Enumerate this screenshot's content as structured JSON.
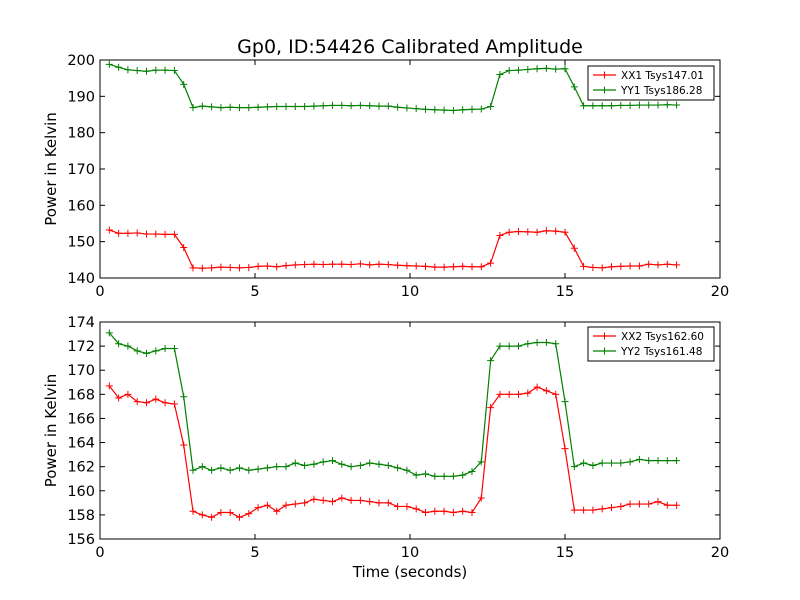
{
  "figure": {
    "title": "Gp0, ID:54426 Calibrated Amplitude"
  },
  "chart_data": [
    {
      "type": "line",
      "title": "Gp0, ID:54426 Calibrated Amplitude",
      "xlabel": "",
      "ylabel": "Power in Kelvin",
      "xlim": [
        0,
        20
      ],
      "ylim": [
        140,
        200
      ],
      "xticks": [
        0,
        5,
        10,
        15,
        20
      ],
      "yticks": [
        140,
        150,
        160,
        170,
        180,
        190,
        200
      ],
      "grid": false,
      "legend_position": "top-right",
      "x": [
        0.3,
        0.6,
        0.9,
        1.2,
        1.5,
        1.8,
        2.1,
        2.4,
        2.7,
        3.0,
        3.3,
        3.6,
        3.9,
        4.2,
        4.5,
        4.8,
        5.1,
        5.4,
        5.7,
        6.0,
        6.3,
        6.6,
        6.9,
        7.2,
        7.5,
        7.8,
        8.1,
        8.4,
        8.7,
        9.0,
        9.3,
        9.6,
        9.9,
        10.2,
        10.5,
        10.8,
        11.1,
        11.4,
        11.7,
        12.0,
        12.3,
        12.6,
        12.9,
        13.2,
        13.5,
        13.8,
        14.1,
        14.4,
        14.7,
        15.0,
        15.3,
        15.6,
        15.9,
        16.2,
        16.5,
        16.8,
        17.1,
        17.4,
        17.7,
        18.0,
        18.3,
        18.6
      ],
      "series": [
        {
          "name": "XX1 Tsys147.01",
          "color": "#ff0000",
          "values": [
            153.2,
            152.3,
            152.3,
            152.4,
            152.1,
            152.1,
            152.0,
            152.0,
            148.4,
            142.8,
            142.7,
            142.8,
            143.0,
            142.9,
            142.8,
            142.9,
            143.2,
            143.3,
            143.1,
            143.4,
            143.6,
            143.7,
            143.8,
            143.7,
            143.8,
            143.8,
            143.7,
            143.9,
            143.6,
            143.8,
            143.7,
            143.5,
            143.4,
            143.3,
            143.2,
            143.0,
            143.0,
            143.1,
            143.2,
            143.1,
            143.1,
            144.1,
            151.7,
            152.6,
            152.8,
            152.7,
            152.6,
            153.0,
            152.9,
            152.6,
            148.2,
            143.2,
            142.9,
            142.8,
            143.1,
            143.2,
            143.3,
            143.3,
            143.8,
            143.6,
            143.8,
            143.6
          ]
        },
        {
          "name": "YY1 Tsys186.28",
          "color": "#008000",
          "values": [
            198.8,
            198.0,
            197.3,
            197.1,
            196.9,
            197.2,
            197.2,
            197.1,
            193.3,
            186.9,
            187.3,
            187.1,
            186.9,
            187.0,
            186.9,
            186.9,
            187.0,
            187.1,
            187.2,
            187.2,
            187.2,
            187.2,
            187.3,
            187.4,
            187.5,
            187.5,
            187.4,
            187.5,
            187.4,
            187.3,
            187.3,
            187.0,
            186.8,
            186.6,
            186.4,
            186.3,
            186.2,
            186.1,
            186.3,
            186.4,
            186.5,
            187.2,
            196.0,
            197.1,
            197.2,
            197.4,
            197.6,
            197.7,
            197.5,
            197.6,
            192.6,
            187.4,
            187.4,
            187.4,
            187.4,
            187.5,
            187.5,
            187.6,
            187.6,
            187.6,
            187.7,
            187.6
          ]
        }
      ]
    },
    {
      "type": "line",
      "title": "",
      "xlabel": "Time (seconds)",
      "ylabel": "Power in Kelvin",
      "xlim": [
        0,
        20
      ],
      "ylim": [
        156,
        174
      ],
      "xticks": [
        0,
        5,
        10,
        15,
        20
      ],
      "yticks": [
        156,
        158,
        160,
        162,
        164,
        166,
        168,
        170,
        172,
        174
      ],
      "grid": false,
      "legend_position": "top-right",
      "x": [
        0.3,
        0.6,
        0.9,
        1.2,
        1.5,
        1.8,
        2.1,
        2.4,
        2.7,
        3.0,
        3.3,
        3.6,
        3.9,
        4.2,
        4.5,
        4.8,
        5.1,
        5.4,
        5.7,
        6.0,
        6.3,
        6.6,
        6.9,
        7.2,
        7.5,
        7.8,
        8.1,
        8.4,
        8.7,
        9.0,
        9.3,
        9.6,
        9.9,
        10.2,
        10.5,
        10.8,
        11.1,
        11.4,
        11.7,
        12.0,
        12.3,
        12.6,
        12.9,
        13.2,
        13.5,
        13.8,
        14.1,
        14.4,
        14.7,
        15.0,
        15.3,
        15.6,
        15.9,
        16.2,
        16.5,
        16.8,
        17.1,
        17.4,
        17.7,
        18.0,
        18.3,
        18.6
      ],
      "series": [
        {
          "name": "XX2 Tsys162.60",
          "color": "#ff0000",
          "values": [
            168.7,
            167.7,
            168.0,
            167.4,
            167.3,
            167.6,
            167.3,
            167.2,
            163.8,
            158.3,
            158.0,
            157.8,
            158.2,
            158.2,
            157.8,
            158.1,
            158.6,
            158.8,
            158.3,
            158.8,
            158.9,
            159.0,
            159.3,
            159.2,
            159.1,
            159.4,
            159.2,
            159.2,
            159.1,
            159.0,
            159.0,
            158.7,
            158.7,
            158.5,
            158.2,
            158.3,
            158.3,
            158.2,
            158.3,
            158.2,
            159.4,
            166.9,
            168.0,
            168.0,
            168.0,
            168.1,
            168.6,
            168.3,
            168.0,
            163.5,
            158.4,
            158.4,
            158.4,
            158.5,
            158.6,
            158.7,
            158.9,
            158.9,
            158.9,
            159.1,
            158.8,
            158.8
          ]
        },
        {
          "name": "YY2 Tsys161.48",
          "color": "#008000",
          "values": [
            173.1,
            172.2,
            172.0,
            171.6,
            171.4,
            171.6,
            171.8,
            171.8,
            167.8,
            161.7,
            162.0,
            161.7,
            161.9,
            161.7,
            161.9,
            161.7,
            161.8,
            161.9,
            162.0,
            162.0,
            162.3,
            162.1,
            162.2,
            162.4,
            162.5,
            162.2,
            162.0,
            162.1,
            162.3,
            162.2,
            162.1,
            161.9,
            161.7,
            161.3,
            161.4,
            161.2,
            161.2,
            161.2,
            161.3,
            161.6,
            162.4,
            170.8,
            172.0,
            172.0,
            172.0,
            172.2,
            172.3,
            172.3,
            172.2,
            167.4,
            162.0,
            162.3,
            162.1,
            162.3,
            162.3,
            162.3,
            162.4,
            162.6,
            162.5,
            162.5,
            162.5,
            162.5
          ]
        }
      ]
    }
  ]
}
